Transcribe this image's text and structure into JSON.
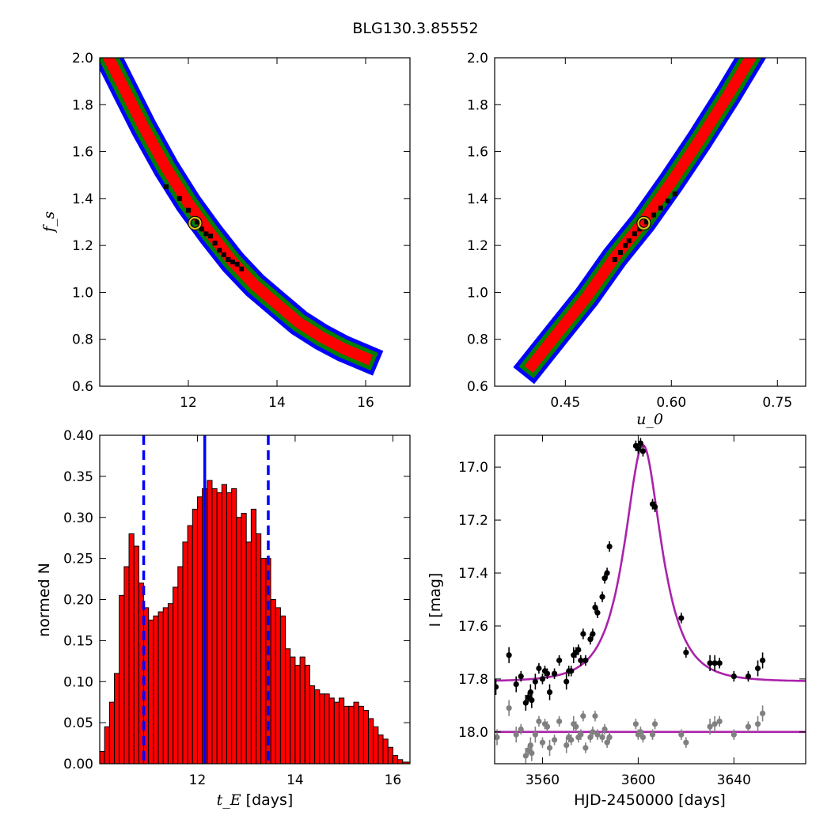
{
  "figure": {
    "title": "BLG130.3.85552"
  },
  "chart_data": [
    {
      "id": "fs-vs-tE",
      "type": "heatmap",
      "xlabel": "",
      "ylabel": "f_s",
      "xlim": [
        10.0,
        17.0
      ],
      "ylim": [
        0.6,
        2.0
      ],
      "xticks": [
        12,
        14,
        16
      ],
      "yticks": [
        0.6,
        0.8,
        1.0,
        1.2,
        1.4,
        1.6,
        1.8,
        2.0
      ],
      "xtick_labels": [
        "12",
        "14",
        "16"
      ],
      "ytick_labels": [
        "0.6",
        "0.8",
        "1.0",
        "1.2",
        "1.4",
        "1.6",
        "1.8",
        "2.0"
      ],
      "ridge": [
        [
          10.2,
          2.0
        ],
        [
          10.6,
          1.85
        ],
        [
          11.0,
          1.7
        ],
        [
          11.5,
          1.53
        ],
        [
          12.0,
          1.38
        ],
        [
          12.5,
          1.25
        ],
        [
          13.0,
          1.13
        ],
        [
          13.5,
          1.03
        ],
        [
          14.0,
          0.95
        ],
        [
          14.5,
          0.87
        ],
        [
          15.0,
          0.81
        ],
        [
          15.5,
          0.76
        ],
        [
          16.0,
          0.72
        ]
      ],
      "bands": [
        {
          "level": "1-sigma",
          "color": "#ff0000"
        },
        {
          "level": "2-sigma",
          "color": "#007f00"
        },
        {
          "level": "3-sigma",
          "color": "#0000ff"
        }
      ],
      "best_samples": [
        [
          11.5,
          1.45
        ],
        [
          11.8,
          1.4
        ],
        [
          12.0,
          1.35
        ],
        [
          12.2,
          1.3
        ],
        [
          12.3,
          1.27
        ],
        [
          12.4,
          1.25
        ],
        [
          12.5,
          1.24
        ],
        [
          12.6,
          1.21
        ],
        [
          12.7,
          1.18
        ],
        [
          12.8,
          1.16
        ],
        [
          12.9,
          1.14
        ],
        [
          13.0,
          1.13
        ],
        [
          13.1,
          1.12
        ],
        [
          13.2,
          1.1
        ]
      ],
      "best_fit": [
        12.15,
        1.295
      ]
    },
    {
      "id": "fs-vs-u0",
      "type": "heatmap",
      "xlabel": "u_0",
      "ylabel": "",
      "xlim": [
        0.35,
        0.79
      ],
      "ylim": [
        0.6,
        2.0
      ],
      "xticks": [
        0.45,
        0.6,
        0.75
      ],
      "yticks": [
        0.6,
        0.8,
        1.0,
        1.2,
        1.4,
        1.6,
        1.8,
        2.0
      ],
      "xtick_labels": [
        "0.45",
        "0.60",
        "0.75"
      ],
      "ytick_labels": [
        "0.6",
        "0.8",
        "1.0",
        "1.2",
        "1.4",
        "1.6",
        "1.8",
        "2.0"
      ],
      "ridge": [
        [
          0.403,
          0.69
        ],
        [
          0.44,
          0.83
        ],
        [
          0.48,
          0.98
        ],
        [
          0.52,
          1.15
        ],
        [
          0.56,
          1.3
        ],
        [
          0.6,
          1.47
        ],
        [
          0.64,
          1.65
        ],
        [
          0.68,
          1.84
        ],
        [
          0.712,
          2.0
        ]
      ],
      "bands": [
        {
          "level": "1-sigma",
          "color": "#ff0000"
        },
        {
          "level": "2-sigma",
          "color": "#007f00"
        },
        {
          "level": "3-sigma",
          "color": "#0000ff"
        }
      ],
      "best_samples": [
        [
          0.52,
          1.14
        ],
        [
          0.528,
          1.17
        ],
        [
          0.535,
          1.2
        ],
        [
          0.54,
          1.22
        ],
        [
          0.548,
          1.25
        ],
        [
          0.555,
          1.27
        ],
        [
          0.565,
          1.3
        ],
        [
          0.575,
          1.33
        ],
        [
          0.585,
          1.36
        ],
        [
          0.595,
          1.39
        ],
        [
          0.605,
          1.42
        ]
      ],
      "best_fit": [
        0.561,
        1.295
      ]
    },
    {
      "id": "tE-histogram",
      "type": "bar",
      "xlabel": "t_E",
      "xlabel_unit": "[days]",
      "ylabel": "normed N",
      "xlim": [
        10.0,
        16.35
      ],
      "ylim": [
        0.0,
        0.4
      ],
      "xticks": [
        12,
        14,
        16
      ],
      "yticks": [
        0.0,
        0.05,
        0.1,
        0.15,
        0.2,
        0.25,
        0.3,
        0.35,
        0.4
      ],
      "xtick_labels": [
        "12",
        "14",
        "16"
      ],
      "ytick_labels": [
        "0.00",
        "0.05",
        "0.10",
        "0.15",
        "0.20",
        "0.25",
        "0.30",
        "0.35",
        "0.40"
      ],
      "bin_start": 10.0,
      "bin_width": 0.1,
      "values": [
        0.015,
        0.045,
        0.075,
        0.11,
        0.205,
        0.24,
        0.28,
        0.265,
        0.22,
        0.19,
        0.175,
        0.18,
        0.185,
        0.19,
        0.195,
        0.215,
        0.24,
        0.27,
        0.29,
        0.31,
        0.325,
        0.335,
        0.345,
        0.335,
        0.33,
        0.34,
        0.33,
        0.335,
        0.3,
        0.305,
        0.27,
        0.31,
        0.28,
        0.25,
        0.25,
        0.2,
        0.19,
        0.18,
        0.14,
        0.13,
        0.12,
        0.13,
        0.12,
        0.095,
        0.09,
        0.085,
        0.085,
        0.08,
        0.075,
        0.08,
        0.07,
        0.07,
        0.075,
        0.07,
        0.065,
        0.055,
        0.045,
        0.035,
        0.03,
        0.02,
        0.01,
        0.005,
        0.002,
        0.002
      ],
      "bar_color": "#ff0000",
      "median": 12.15,
      "interval": [
        10.9,
        13.45
      ],
      "line_color": "#0000ff"
    },
    {
      "id": "lightcurve",
      "type": "scatter",
      "xlabel": "HJD-2450000 [days]",
      "ylabel": "I [mag]",
      "xlim": [
        3540,
        3670
      ],
      "ylim": [
        18.12,
        16.88
      ],
      "xticks": [
        3560,
        3600,
        3640
      ],
      "yticks": [
        17.0,
        17.2,
        17.4,
        17.6,
        17.8,
        18.0
      ],
      "xtick_labels": [
        "3560",
        "3600",
        "3640"
      ],
      "ytick_labels": [
        "17.0",
        "17.2",
        "17.4",
        "17.6",
        "17.8",
        "18.0"
      ],
      "model": {
        "t0": 3602.0,
        "tE": 12.15,
        "u0": 0.561,
        "fs": 1.295,
        "Ibase": 17.81,
        "color": "#aa22aa"
      },
      "residual_model": {
        "level": 18.0,
        "color": "#aa22aa"
      },
      "series": [
        {
          "color": "#000000",
          "points": [
            [
              3540.5,
              17.83,
              0.03
            ],
            [
              3546,
              17.71,
              0.03
            ],
            [
              3549,
              17.82,
              0.03
            ],
            [
              3551,
              17.79,
              0.02
            ],
            [
              3553,
              17.89,
              0.03
            ],
            [
              3554,
              17.87,
              0.02
            ],
            [
              3555,
              17.85,
              0.03
            ],
            [
              3555.5,
              17.88,
              0.03
            ],
            [
              3557,
              17.81,
              0.03
            ],
            [
              3558.5,
              17.76,
              0.02
            ],
            [
              3560,
              17.8,
              0.02
            ],
            [
              3561,
              17.77,
              0.02
            ],
            [
              3562,
              17.78,
              0.02
            ],
            [
              3563,
              17.85,
              0.03
            ],
            [
              3565,
              17.78,
              0.02
            ],
            [
              3567,
              17.73,
              0.02
            ],
            [
              3570,
              17.81,
              0.03
            ],
            [
              3571,
              17.77,
              0.02
            ],
            [
              3572,
              17.77,
              0.02
            ],
            [
              3573,
              17.71,
              0.03
            ],
            [
              3574,
              17.7,
              0.02
            ],
            [
              3575,
              17.69,
              0.02
            ],
            [
              3576,
              17.73,
              0.02
            ],
            [
              3577,
              17.63,
              0.02
            ],
            [
              3578,
              17.73,
              0.02
            ],
            [
              3580,
              17.65,
              0.02
            ],
            [
              3581,
              17.63,
              0.02
            ],
            [
              3582,
              17.53,
              0.02
            ],
            [
              3583,
              17.55,
              0.02
            ],
            [
              3585,
              17.49,
              0.02
            ],
            [
              3586,
              17.42,
              0.02
            ],
            [
              3587,
              17.4,
              0.02
            ],
            [
              3588,
              17.3,
              0.02
            ],
            [
              3599,
              16.92,
              0.02
            ],
            [
              3600,
              16.93,
              0.02
            ],
            [
              3601,
              16.91,
              0.02
            ],
            [
              3602,
              16.94,
              0.02
            ],
            [
              3606,
              17.14,
              0.02
            ],
            [
              3607,
              17.15,
              0.02
            ],
            [
              3618,
              17.57,
              0.02
            ],
            [
              3620,
              17.7,
              0.02
            ],
            [
              3630,
              17.74,
              0.03
            ],
            [
              3632,
              17.74,
              0.03
            ],
            [
              3634,
              17.74,
              0.02
            ],
            [
              3640,
              17.79,
              0.02
            ],
            [
              3646,
              17.79,
              0.02
            ],
            [
              3650,
              17.76,
              0.03
            ],
            [
              3652,
              17.73,
              0.03
            ]
          ]
        },
        {
          "color": "#808080",
          "points": [
            [
              3541,
              18.02,
              0.03
            ],
            [
              3546,
              17.91,
              0.03
            ],
            [
              3549,
              18.01,
              0.03
            ],
            [
              3551,
              17.99,
              0.02
            ],
            [
              3553,
              18.09,
              0.03
            ],
            [
              3554,
              18.07,
              0.02
            ],
            [
              3555,
              18.05,
              0.03
            ],
            [
              3555.5,
              18.08,
              0.03
            ],
            [
              3557,
              18.01,
              0.03
            ],
            [
              3558.5,
              17.96,
              0.02
            ],
            [
              3560,
              18.04,
              0.02
            ],
            [
              3561,
              17.97,
              0.02
            ],
            [
              3562,
              17.98,
              0.02
            ],
            [
              3563,
              18.06,
              0.03
            ],
            [
              3565,
              18.03,
              0.02
            ],
            [
              3567,
              17.96,
              0.02
            ],
            [
              3570,
              18.05,
              0.03
            ],
            [
              3571,
              18.02,
              0.02
            ],
            [
              3572,
              18.03,
              0.02
            ],
            [
              3573,
              17.97,
              0.03
            ],
            [
              3574,
              17.98,
              0.02
            ],
            [
              3575,
              18.02,
              0.02
            ],
            [
              3576,
              18.01,
              0.02
            ],
            [
              3577,
              17.94,
              0.02
            ],
            [
              3578,
              18.06,
              0.02
            ],
            [
              3580,
              18.02,
              0.02
            ],
            [
              3581,
              18.0,
              0.02
            ],
            [
              3582,
              17.94,
              0.02
            ],
            [
              3583,
              18.01,
              0.02
            ],
            [
              3585,
              18.02,
              0.02
            ],
            [
              3586,
              17.99,
              0.02
            ],
            [
              3587,
              18.04,
              0.02
            ],
            [
              3588,
              18.02,
              0.02
            ],
            [
              3599,
              17.97,
              0.02
            ],
            [
              3600,
              18.01,
              0.02
            ],
            [
              3601,
              18.0,
              0.02
            ],
            [
              3602,
              18.02,
              0.02
            ],
            [
              3606,
              18.01,
              0.02
            ],
            [
              3607,
              17.97,
              0.02
            ],
            [
              3618,
              18.01,
              0.02
            ],
            [
              3620,
              18.04,
              0.02
            ],
            [
              3630,
              17.98,
              0.03
            ],
            [
              3632,
              17.97,
              0.03
            ],
            [
              3634,
              17.96,
              0.02
            ],
            [
              3640,
              18.01,
              0.02
            ],
            [
              3646,
              17.98,
              0.02
            ],
            [
              3650,
              17.97,
              0.03
            ],
            [
              3652,
              17.93,
              0.03
            ]
          ]
        }
      ]
    }
  ]
}
